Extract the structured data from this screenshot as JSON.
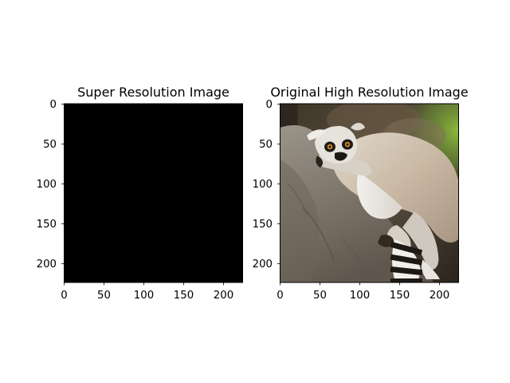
{
  "figure": {
    "background": "#ffffff",
    "subplots": [
      {
        "id": "super-resolution",
        "title": "Super Resolution Image",
        "image_content": "solid-black",
        "fill_color": "#000000",
        "image_size": [
          224,
          224
        ],
        "xticks": [
          "0",
          "50",
          "100",
          "150",
          "200"
        ],
        "yticks": [
          "0",
          "50",
          "100",
          "150",
          "200"
        ]
      },
      {
        "id": "original",
        "title": "Original High Resolution Image",
        "image_content": "ring-tailed-lemur-on-rock-photo",
        "image_size": [
          224,
          224
        ],
        "xticks": [
          "0",
          "50",
          "100",
          "150",
          "200"
        ],
        "yticks": [
          "0",
          "50",
          "100",
          "150",
          "200"
        ]
      }
    ]
  }
}
